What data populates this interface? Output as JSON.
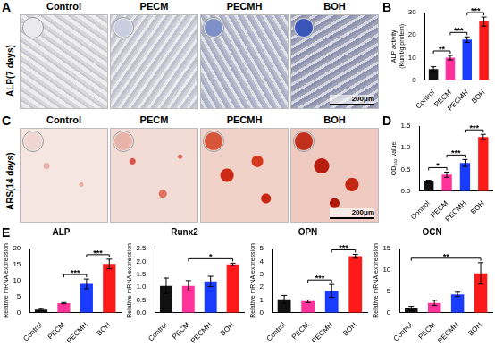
{
  "image_panels": [
    {
      "panel": "A",
      "title": "ALP(7 days)",
      "groups": [
        "Control",
        "PECM",
        "PECMH",
        "BOH"
      ],
      "scale_bar": "200μm"
    },
    {
      "panel": "C",
      "title": "ARS(14 days)",
      "groups": [
        "Control",
        "PECM",
        "PECMH",
        "BOH"
      ],
      "scale_bar": "200μm"
    }
  ],
  "chart_data": [
    {
      "panel": "B",
      "type": "bar",
      "y_label": [
        "ALP activity",
        "(Kunit/g protein)"
      ],
      "categories": [
        "Control",
        "PECM",
        "PECMH",
        "BOH"
      ],
      "values": [
        5,
        10,
        18,
        26
      ],
      "errors": [
        1,
        1,
        1.2,
        2
      ],
      "colors": [
        "#111111",
        "#ff3399",
        "#1a3cff",
        "#ff1a1a"
      ],
      "ylim": [
        0,
        30
      ],
      "yticks": [
        0,
        10,
        20,
        30
      ],
      "significance": [
        {
          "from": "Control",
          "to": "PECM",
          "label": "**"
        },
        {
          "from": "PECM",
          "to": "PECMH",
          "label": "***"
        },
        {
          "from": "PECMH",
          "to": "BOH",
          "label": "***"
        }
      ]
    },
    {
      "panel": "D",
      "type": "bar",
      "y_label": "OD₅₆₂ value",
      "categories": [
        "Control",
        "PECM",
        "PECMH",
        "BOH"
      ],
      "values": [
        0.22,
        0.38,
        0.65,
        1.25
      ],
      "errors": [
        0.03,
        0.06,
        0.08,
        0.06
      ],
      "colors": [
        "#111111",
        "#ff3399",
        "#1a3cff",
        "#ff1a1a"
      ],
      "ylim": [
        0,
        1.5
      ],
      "yticks": [
        {
          "value": 0,
          "label": "0.0"
        },
        {
          "value": 0.5,
          "label": "0.5"
        },
        {
          "value": 1,
          "label": "1.0"
        },
        {
          "value": 1.5,
          "label": "1.5"
        }
      ],
      "significance": [
        {
          "from": "Control",
          "to": "PECM",
          "label": "*"
        },
        {
          "from": "PECM",
          "to": "PECMH",
          "label": "***"
        },
        {
          "from": "PECMH",
          "to": "BOH",
          "label": "***"
        }
      ]
    },
    {
      "panel": "E",
      "type": "bar",
      "title": "ALP",
      "y_label": "Relative mRNA expression",
      "categories": [
        "Control",
        "PECM",
        "PECMH",
        "BOH"
      ],
      "values": [
        1,
        3,
        9,
        15.2
      ],
      "errors": [
        0.3,
        0.2,
        1.5,
        1.5
      ],
      "colors": [
        "#111111",
        "#ff3399",
        "#1a3cff",
        "#ff1a1a"
      ],
      "ylim": [
        0,
        20
      ],
      "yticks": [
        0,
        5,
        10,
        15,
        20
      ],
      "significance": [
        {
          "from": "PECM",
          "to": "PECMH",
          "label": "***"
        },
        {
          "from": "PECMH",
          "to": "BOH",
          "label": "***"
        }
      ]
    },
    {
      "type": "bar",
      "title": "Runx2",
      "y_label": "Relative mRNA expression",
      "categories": [
        "Control",
        "PECM",
        "PECMH",
        "BOH"
      ],
      "values": [
        1.05,
        1.05,
        1.22,
        1.88
      ],
      "errors": [
        0.3,
        0.2,
        0.2,
        0.05
      ],
      "colors": [
        "#111111",
        "#ff3399",
        "#1a3cff",
        "#ff1a1a"
      ],
      "ylim": [
        0,
        2.5
      ],
      "yticks": [
        {
          "value": 0,
          "label": "0.0"
        },
        {
          "value": 0.5,
          "label": "0.5"
        },
        {
          "value": 1,
          "label": "1.0"
        },
        {
          "value": 1.5,
          "label": "1.5"
        },
        {
          "value": 2,
          "label": "2.0"
        },
        {
          "value": 2.5,
          "label": "2.5"
        }
      ],
      "significance": [
        {
          "from": "PECM",
          "to": "BOH",
          "label": "*"
        }
      ]
    },
    {
      "type": "bar",
      "title": "OPN",
      "y_label": "Relative mRNA expression",
      "categories": [
        "Control",
        "PECM",
        "PECMH",
        "BOH"
      ],
      "values": [
        1.05,
        0.9,
        1.7,
        4.4
      ],
      "errors": [
        0.3,
        0.1,
        0.5,
        0.15
      ],
      "colors": [
        "#111111",
        "#ff3399",
        "#1a3cff",
        "#ff1a1a"
      ],
      "ylim": [
        0,
        5
      ],
      "yticks": [
        0,
        1,
        2,
        3,
        4,
        5
      ],
      "significance": [
        {
          "from": "PECM",
          "to": "PECMH",
          "label": "***"
        },
        {
          "from": "PECMH",
          "to": "BOH",
          "label": "***"
        }
      ]
    },
    {
      "type": "bar",
      "title": "OCN",
      "y_label": "Relative mRNA expression",
      "categories": [
        "Control",
        "PECM",
        "PECMH",
        "BOH"
      ],
      "values": [
        1,
        2.3,
        4.3,
        9.2
      ],
      "errors": [
        0.5,
        0.6,
        0.5,
        2.5
      ],
      "colors": [
        "#111111",
        "#ff3399",
        "#1a3cff",
        "#ff1a1a"
      ],
      "ylim": [
        0,
        15
      ],
      "yticks": [
        0,
        5,
        10,
        15
      ],
      "significance": [
        {
          "from": "Control",
          "to": "BOH",
          "label": "**"
        }
      ]
    }
  ]
}
